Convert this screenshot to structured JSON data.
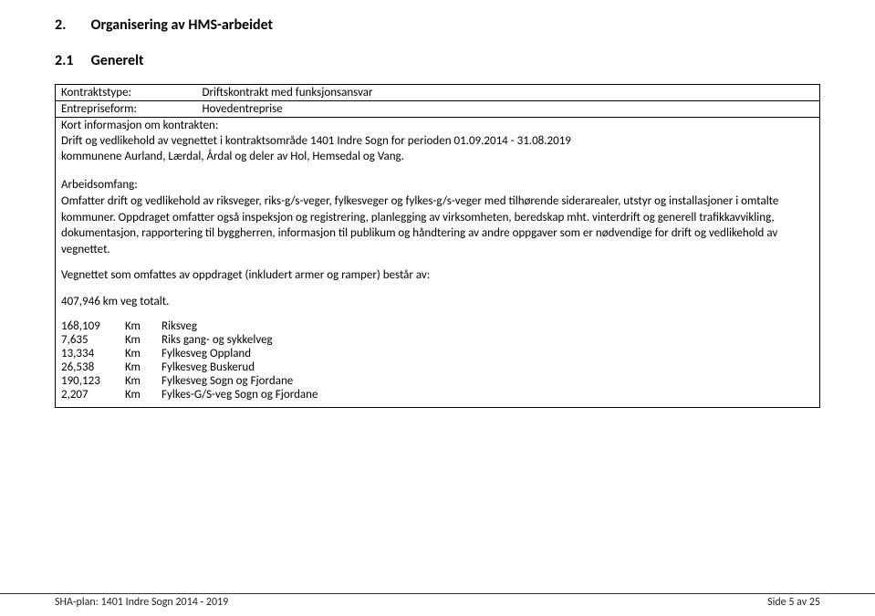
{
  "heading1": {
    "num": "2.",
    "text": "Organisering av HMS-arbeidet"
  },
  "heading2": {
    "num": "2.1",
    "text": "Generelt"
  },
  "contract": {
    "type_label": "Kontraktstype:",
    "type_value": "Driftskontrakt med funksjonsansvar",
    "form_label": "Entrepriseform:",
    "form_value": "Hovedentreprise",
    "info_header": "Kort informasjon om kontrakten:",
    "line1": "Drift og vedlikehold av vegnettet i kontraktsområde 1401 Indre Sogn for perioden 01.09.2014 - 31.08.2019",
    "line2": "kommunene Aurland, Lærdal, Årdal og deler av Hol, Hemsedal og Vang.",
    "scope_label": "Arbeidsomfang:",
    "scope_p1": "Omfatter drift og vedlikehold av riksveger, riks-g/s-veger, fylkesveger og fylkes-g/s-veger med tilhørende siderarealer, utstyr og installasjoner i omtalte kommuner. Oppdraget omfatter også inspeksjon og registrering, planlegging av virksomheten, beredskap mht. vinterdrift og generell trafikkavvikling, dokumentasjon, rapportering til byggherren, informasjon til publikum og håndtering av andre oppgaver som er nødvendige for drift og vedlikehold av vegnettet.",
    "scope_p2": "Vegnettet som omfattes av oppdraget (inkludert armer og ramper) består av:",
    "total": "407,946 km veg totalt."
  },
  "roads": [
    {
      "len": "168,109",
      "unit": "Km",
      "name": "Riksveg"
    },
    {
      "len": "7,635",
      "unit": "Km",
      "name": "Riks gang- og sykkelveg"
    },
    {
      "len": "13,334",
      "unit": "Km",
      "name": "Fylkesveg Oppland"
    },
    {
      "len": "26,538",
      "unit": "Km",
      "name": "Fylkesveg Buskerud"
    },
    {
      "len": "190,123",
      "unit": "Km",
      "name": "Fylkesveg Sogn og Fjordane"
    },
    {
      "len": "2,207",
      "unit": "Km",
      "name": "Fylkes-G/S-veg Sogn og Fjordane"
    }
  ],
  "footer": {
    "left": "SHA-plan: 1401 Indre Sogn 2014 - 2019",
    "right": "Side 5 av 25"
  }
}
